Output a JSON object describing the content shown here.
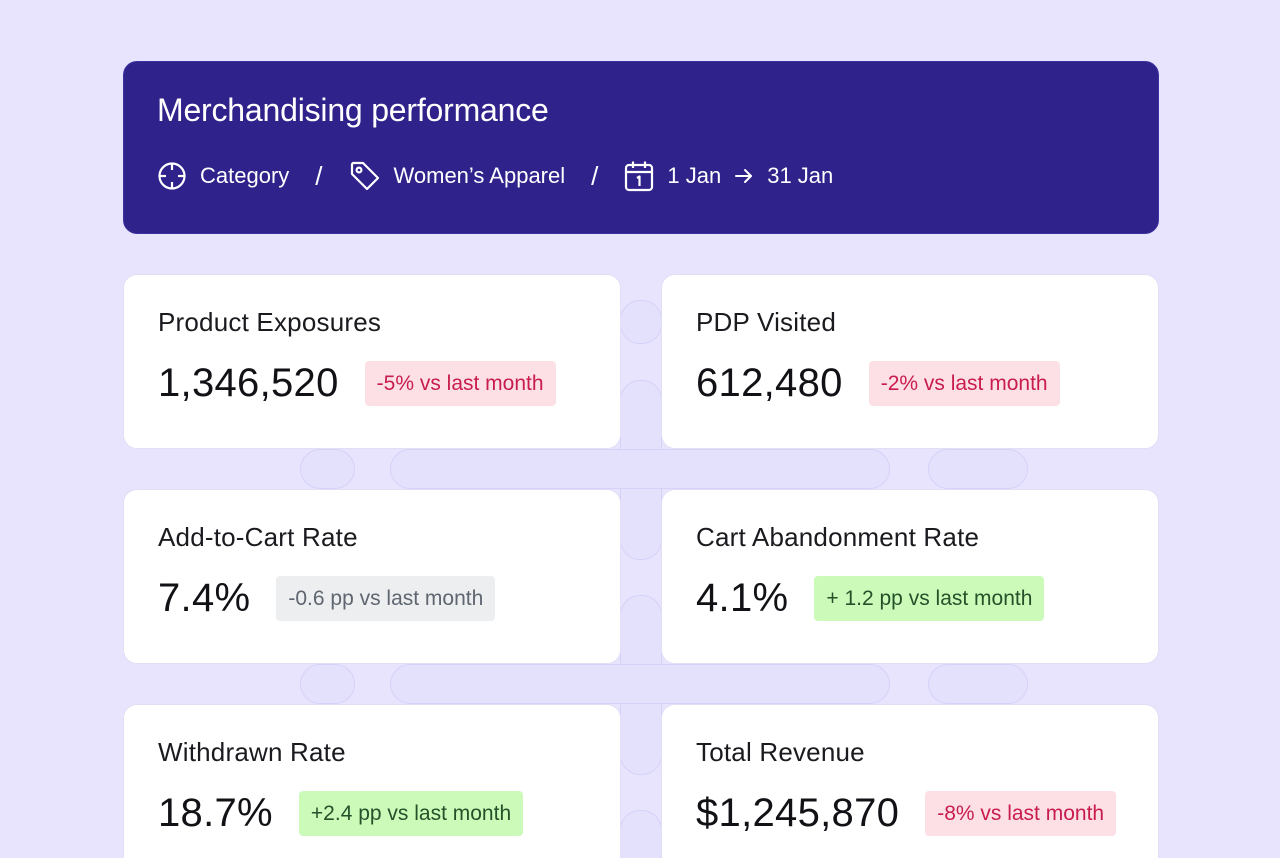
{
  "header": {
    "title": "Merchandising performance",
    "breadcrumb": {
      "category_label": "Category",
      "separator": "/",
      "subcategory_label": "Women’s Apparel",
      "date_start": "1 Jan",
      "date_end": "31 Jan"
    },
    "icons": [
      "target-icon",
      "tag-icon",
      "calendar-icon",
      "arrow-right-icon"
    ]
  },
  "metrics": [
    {
      "label": "Product Exposures",
      "value": "1,346,520",
      "change": "-5% vs last month",
      "trend": "negative"
    },
    {
      "label": "PDP Visited",
      "value": "612,480",
      "change": "-2% vs last month",
      "trend": "negative"
    },
    {
      "label": "Add-to-Cart Rate",
      "value": "7.4%",
      "change": "-0.6 pp vs last month",
      "trend": "neutral"
    },
    {
      "label": "Cart Abandonment Rate",
      "value": "4.1%",
      "change": "+ 1.2 pp vs last month",
      "trend": "positive"
    },
    {
      "label": "Withdrawn Rate",
      "value": "18.7%",
      "change": "+2.4 pp vs last month",
      "trend": "positive"
    },
    {
      "label": "Total Revenue",
      "value": "$1,245,870",
      "change": "-8% vs last month",
      "trend": "negative"
    }
  ],
  "colors": {
    "background": "#e8e4fe",
    "header": "#2f238b",
    "negative_bg": "#fde0e6",
    "negative_text": "#c81c4c",
    "neutral_bg": "#eceef0",
    "positive_bg": "#ccfbb9"
  }
}
